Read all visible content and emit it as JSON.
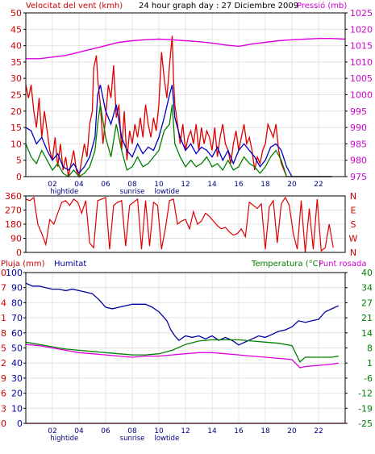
{
  "colors": {
    "background": "#ffffff",
    "border": "#000000",
    "grid": "#e4e4e4",
    "red": "#e00000",
    "wind_gust": "#e00000",
    "wind_avg": "#0000c0",
    "wind_min": "#008000",
    "pressure": "#e000e0",
    "humidity": "#0000a0",
    "temperature": "#008000",
    "dewpoint": "#e000e0",
    "rain": "#e00000",
    "tick_text_left": "#d00000",
    "tick_text_right": "#d000d0",
    "hour_text": "#000080",
    "temp_axis_text": "#008000"
  },
  "top_chart": {
    "title_left": "Velocitat del vent (kmh)",
    "title_center": "24 hour graph day : 27 Diciembre 2009",
    "title_right": "Pressió (mb)"
  },
  "wind_dir_chart": {},
  "bottom_chart": {
    "label_rain": "Pluja (mm)",
    "label_humidity": "Humitat",
    "label_temp": "Temperatura (°C)",
    "label_dew": "Punt rosada"
  },
  "time_axis": {
    "hour_labels": [
      "02",
      "04",
      "06",
      "08",
      "10",
      "12",
      "14",
      "16",
      "18",
      "20",
      "22"
    ],
    "events": [
      {
        "label": "hightide",
        "hour": 2.9
      },
      {
        "label": "sunrise",
        "hour": 8.0
      },
      {
        "label": "lowtide",
        "hour": 10.6
      }
    ]
  },
  "chart_data": [
    {
      "type": "line",
      "title": "24 hour graph day : 27 Diciembre 2009",
      "xlabel": "",
      "xlim": [
        0,
        24
      ],
      "left_axis": {
        "label": "Velocitat del vent (kmh)",
        "ticks": [
          0,
          5,
          10,
          15,
          20,
          25,
          30,
          35,
          40,
          45,
          50
        ],
        "ylim": [
          0,
          50
        ]
      },
      "right_axis": {
        "label": "Pressió (mb)",
        "ticks": [
          975,
          980,
          985,
          990,
          995,
          1000,
          1005,
          1010,
          1015,
          1020,
          1025
        ],
        "ylim": [
          975,
          1025
        ]
      },
      "series": [
        {
          "name": "",
          "axis": "left",
          "kind": "gust",
          "x": [
            0,
            0.2,
            0.4,
            0.6,
            0.8,
            1.0,
            1.2,
            1.4,
            1.6,
            1.8,
            2.0,
            2.2,
            2.4,
            2.6,
            2.8,
            3.0,
            3.2,
            3.4,
            3.6,
            3.8,
            4.0,
            4.2,
            4.4,
            4.6,
            4.8,
            5.0,
            5.1,
            5.3,
            5.4,
            5.6,
            5.8,
            6.0,
            6.2,
            6.4,
            6.6,
            6.8,
            7.0,
            7.2,
            7.4,
            7.6,
            7.8,
            8.0,
            8.2,
            8.4,
            8.6,
            8.8,
            9.0,
            9.2,
            9.4,
            9.6,
            9.8,
            10.0,
            10.2,
            10.4,
            10.6,
            10.8,
            11.0,
            11.1,
            11.2,
            11.4,
            11.6,
            11.8,
            12.0,
            12.2,
            12.4,
            12.6,
            12.8,
            13.0,
            13.2,
            13.4,
            13.6,
            13.8,
            14.0,
            14.2,
            14.4,
            14.6,
            14.8,
            15.0,
            15.2,
            15.4,
            15.6,
            15.8,
            16.0,
            16.2,
            16.4,
            16.6,
            16.8,
            17.0,
            17.2,
            17.4,
            17.6,
            17.8,
            18.0,
            18.2,
            18.4,
            18.6,
            18.8,
            19.0,
            19.2,
            19.4,
            19.6,
            19.8,
            20.0,
            20.2,
            20.4,
            20.6,
            20.8,
            21.0,
            21.2,
            21.4,
            21.6,
            21.8,
            22.0,
            22.2,
            22.4,
            22.6,
            22.8,
            23.0
          ],
          "y": [
            28,
            24,
            28,
            20,
            15,
            24,
            12,
            20,
            14,
            8,
            5,
            12,
            3,
            10,
            2,
            6,
            0,
            4,
            8,
            2,
            0,
            5,
            10,
            6,
            16,
            20,
            33,
            37,
            30,
            22,
            10,
            18,
            28,
            24,
            34,
            18,
            22,
            8,
            20,
            5,
            14,
            10,
            16,
            12,
            18,
            12,
            22,
            16,
            12,
            18,
            14,
            22,
            38,
            30,
            24,
            34,
            43,
            30,
            22,
            16,
            10,
            16,
            8,
            12,
            14,
            10,
            16,
            8,
            15,
            10,
            14,
            12,
            8,
            15,
            6,
            12,
            16,
            10,
            8,
            4,
            10,
            14,
            8,
            12,
            16,
            10,
            12,
            8,
            2,
            6,
            4,
            8,
            10,
            16,
            14,
            12,
            16,
            8,
            4,
            2,
            0,
            0,
            0,
            0,
            0,
            0,
            0,
            0,
            0,
            0,
            0,
            0,
            0,
            0,
            0,
            0,
            0,
            0
          ]
        },
        {
          "name": "",
          "axis": "left",
          "kind": "average",
          "x": [
            0,
            0.4,
            0.8,
            1.2,
            1.6,
            2.0,
            2.4,
            2.8,
            3.2,
            3.6,
            4.0,
            4.4,
            4.8,
            5.2,
            5.4,
            5.6,
            6.0,
            6.4,
            6.8,
            7.2,
            7.6,
            8.0,
            8.4,
            8.8,
            9.2,
            9.6,
            10.0,
            10.4,
            10.8,
            11.0,
            11.2,
            11.6,
            12.0,
            12.4,
            12.8,
            13.2,
            13.6,
            14.0,
            14.4,
            14.8,
            15.2,
            15.6,
            16.0,
            16.4,
            16.8,
            17.2,
            17.6,
            18.0,
            18.4,
            18.8,
            19.2,
            19.6,
            20.0,
            20.4,
            20.8,
            21.2,
            21.6,
            22.0,
            22.4,
            22.8,
            23.0
          ],
          "y": [
            15,
            14,
            10,
            12,
            8,
            5,
            7,
            3,
            2,
            4,
            1,
            3,
            6,
            12,
            25,
            28,
            20,
            16,
            22,
            12,
            8,
            6,
            10,
            7,
            9,
            8,
            12,
            18,
            25,
            28,
            18,
            12,
            8,
            10,
            7,
            9,
            8,
            6,
            9,
            5,
            8,
            4,
            8,
            10,
            8,
            6,
            3,
            5,
            9,
            10,
            8,
            3,
            0,
            0,
            0,
            0,
            0,
            0,
            0,
            0,
            0
          ]
        },
        {
          "name": "",
          "axis": "left",
          "kind": "minimum",
          "x": [
            0,
            0.4,
            0.8,
            1.2,
            1.6,
            2.0,
            2.4,
            2.8,
            3.2,
            3.6,
            4.0,
            4.4,
            4.8,
            5.2,
            5.4,
            5.6,
            6.0,
            6.4,
            6.8,
            7.2,
            7.6,
            8.0,
            8.4,
            8.8,
            9.2,
            9.6,
            10.0,
            10.4,
            10.8,
            11.0,
            11.2,
            11.6,
            12.0,
            12.4,
            12.8,
            13.2,
            13.6,
            14.0,
            14.4,
            14.8,
            15.2,
            15.6,
            16.0,
            16.4,
            16.8,
            17.2,
            17.6,
            18.0,
            18.4,
            18.8,
            19.2,
            19.6,
            20.0,
            20.4,
            20.8,
            21.2,
            21.6,
            22.0,
            22.4,
            22.8,
            23.0
          ],
          "y": [
            10,
            6,
            4,
            8,
            5,
            2,
            4,
            1,
            0,
            2,
            0,
            1,
            3,
            8,
            16,
            22,
            12,
            6,
            16,
            8,
            2,
            3,
            6,
            3,
            4,
            6,
            8,
            14,
            16,
            22,
            10,
            6,
            3,
            5,
            3,
            4,
            6,
            3,
            4,
            2,
            5,
            2,
            3,
            6,
            4,
            3,
            1,
            3,
            6,
            8,
            5,
            0,
            0,
            0,
            0,
            0,
            0,
            0,
            0,
            0,
            0
          ]
        },
        {
          "name": "",
          "axis": "right",
          "kind": "pressure",
          "x": [
            0,
            1,
            2,
            3,
            4,
            5,
            6,
            7,
            8,
            9,
            10,
            11,
            12,
            13,
            14,
            15,
            16,
            17,
            18,
            19,
            20,
            21,
            22,
            23,
            24
          ],
          "y": [
            1011,
            1011,
            1011.5,
            1012,
            1013,
            1014,
            1015,
            1016,
            1016.5,
            1016.8,
            1017,
            1016.8,
            1016.5,
            1016.2,
            1015.8,
            1015.2,
            1014.8,
            1015.5,
            1016,
            1016.5,
            1016.8,
            1017,
            1017.2,
            1017.2,
            1017
          ]
        }
      ]
    },
    {
      "type": "line",
      "xlim": [
        0,
        24
      ],
      "left_axis": {
        "ticks": [
          0,
          90,
          180,
          270,
          360
        ],
        "ylim": [
          0,
          360
        ]
      },
      "right_axis": {
        "ticks": [
          "N",
          "W",
          "S",
          "E",
          "N"
        ]
      },
      "series": [
        {
          "name": "",
          "kind": "direction",
          "x": [
            0,
            0.3,
            0.6,
            0.9,
            1.2,
            1.5,
            1.8,
            2.1,
            2.4,
            2.7,
            3.0,
            3.3,
            3.6,
            3.9,
            4.2,
            4.5,
            4.8,
            5.1,
            5.4,
            5.7,
            6.0,
            6.3,
            6.6,
            6.9,
            7.2,
            7.5,
            7.8,
            8.1,
            8.4,
            8.7,
            9.0,
            9.3,
            9.6,
            9.9,
            10.2,
            10.5,
            10.8,
            11.1,
            11.4,
            11.7,
            12.0,
            12.3,
            12.6,
            12.9,
            13.2,
            13.5,
            13.8,
            14.1,
            14.4,
            14.7,
            15.0,
            15.3,
            15.6,
            15.9,
            16.2,
            16.5,
            16.8,
            17.1,
            17.4,
            17.7,
            18.0,
            18.3,
            18.6,
            18.9,
            19.2,
            19.5,
            19.8,
            20.1,
            20.4,
            20.7,
            21.0,
            21.3,
            21.6,
            21.9,
            22.2,
            22.5,
            22.8,
            23.1
          ],
          "y": [
            340,
            330,
            350,
            180,
            120,
            50,
            210,
            180,
            250,
            320,
            330,
            300,
            340,
            320,
            250,
            330,
            60,
            30,
            330,
            340,
            350,
            20,
            300,
            320,
            330,
            40,
            300,
            320,
            340,
            20,
            330,
            40,
            320,
            300,
            20,
            160,
            330,
            340,
            180,
            200,
            210,
            150,
            260,
            180,
            200,
            250,
            230,
            200,
            170,
            150,
            160,
            130,
            110,
            120,
            150,
            100,
            320,
            300,
            280,
            310,
            20,
            290,
            330,
            60,
            310,
            350,
            300,
            120,
            20,
            330,
            0,
            280,
            20,
            340,
            10,
            30,
            180,
            30
          ]
        }
      ]
    },
    {
      "type": "line",
      "xlim": [
        0,
        24
      ],
      "axes": {
        "rain": {
          "label": "Pluja (mm)",
          "ticks": [
            0,
            3,
            6,
            9,
            12,
            15,
            18,
            21,
            24,
            27,
            30
          ],
          "ylim": [
            0,
            30
          ]
        },
        "humidity": {
          "label": "Humitat",
          "ticks": [
            0,
            10,
            20,
            30,
            40,
            50,
            60,
            70,
            80,
            90,
            100
          ],
          "ylim": [
            0,
            100
          ]
        },
        "temp": {
          "label": "Temperatura (°C)",
          "ticks": [
            -25,
            -19,
            -12,
            -6,
            1,
            8,
            14,
            21,
            27,
            34,
            40
          ],
          "ylim": [
            -25,
            40
          ]
        }
      },
      "series": [
        {
          "name": "Humitat",
          "axis": "humidity",
          "x": [
            0,
            0.5,
            1,
            1.5,
            2,
            2.5,
            3,
            3.5,
            4,
            4.5,
            5,
            5.5,
            6,
            6.5,
            7,
            7.5,
            8,
            8.5,
            9,
            9.5,
            10,
            10.3,
            10.6,
            10.9,
            11.2,
            11.5,
            12,
            12.5,
            13,
            13.5,
            14,
            14.5,
            15,
            15.5,
            16,
            16.5,
            17,
            17.5,
            18,
            18.5,
            19,
            19.5,
            20,
            20.5,
            21,
            21.5,
            22,
            22.5,
            23,
            23.5
          ],
          "y": [
            93,
            91,
            91,
            90,
            89,
            89,
            88,
            89,
            88,
            87,
            86,
            82,
            77,
            76,
            77,
            78,
            79,
            79,
            79,
            77,
            74,
            71,
            68,
            62,
            58,
            55,
            58,
            57,
            58,
            56,
            58,
            55,
            57,
            55,
            52,
            54,
            56,
            58,
            57,
            59,
            61,
            62,
            64,
            68,
            67,
            68,
            69,
            74,
            76,
            78
          ]
        },
        {
          "name": "Temperatura (°C)",
          "axis": "temp",
          "x": [
            0,
            1,
            2,
            3,
            4,
            5,
            6,
            7,
            8,
            9,
            10,
            11,
            12,
            13,
            14,
            15,
            16,
            17,
            18,
            19,
            20,
            20.6,
            21,
            22,
            23,
            23.5
          ],
          "y": [
            10,
            9,
            8,
            7,
            6.5,
            6,
            5.5,
            5,
            4.5,
            4.5,
            5,
            6.5,
            9,
            10.5,
            11,
            11,
            11,
            10.5,
            10,
            9.5,
            8.5,
            1.5,
            3.5,
            3.5,
            3.5,
            4
          ]
        },
        {
          "name": "Punt rosada",
          "axis": "temp",
          "x": [
            0,
            1,
            2,
            3,
            4,
            5,
            6,
            7,
            8,
            9,
            10,
            11,
            12,
            13,
            14,
            15,
            16,
            17,
            18,
            19,
            20,
            20.6,
            21,
            22,
            23,
            23.5
          ],
          "y": [
            9,
            8.5,
            7.5,
            6.5,
            5.5,
            5,
            4.5,
            4,
            3.5,
            4,
            4,
            4.5,
            5,
            5.5,
            5.5,
            5,
            4.5,
            4,
            3.5,
            3,
            2.5,
            -1,
            -0.5,
            0,
            0.5,
            1
          ]
        },
        {
          "name": "Pluja (mm)",
          "axis": "rain",
          "x": [
            0,
            24
          ],
          "y": [
            0,
            0
          ]
        }
      ]
    }
  ]
}
